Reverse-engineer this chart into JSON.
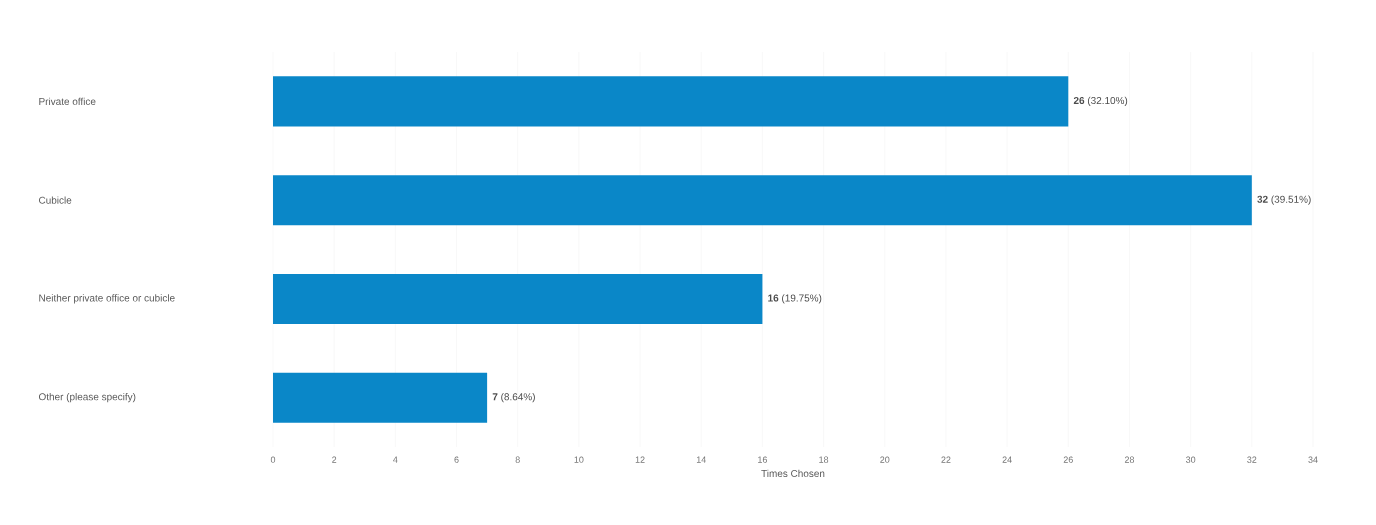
{
  "chart_data": {
    "type": "bar",
    "orientation": "horizontal",
    "xlabel": "Times Chosen",
    "categories": [
      "Private office",
      "Cubicle",
      "Neither private office or cubicle",
      "Other (please specify)"
    ],
    "values": [
      26,
      32,
      16,
      7
    ],
    "value_labels": [
      "**26** (32.10%)",
      "**32** (39.51%)",
      "**16** (19.75%)",
      "**7** (8.64%)"
    ],
    "color": "#0a87c8",
    "xlim": [
      0,
      34
    ],
    "xticks": [
      0,
      2,
      4,
      6,
      8,
      10,
      12,
      14,
      16,
      18,
      20,
      22,
      24,
      26,
      28,
      30,
      32,
      34
    ],
    "grid": "x"
  }
}
